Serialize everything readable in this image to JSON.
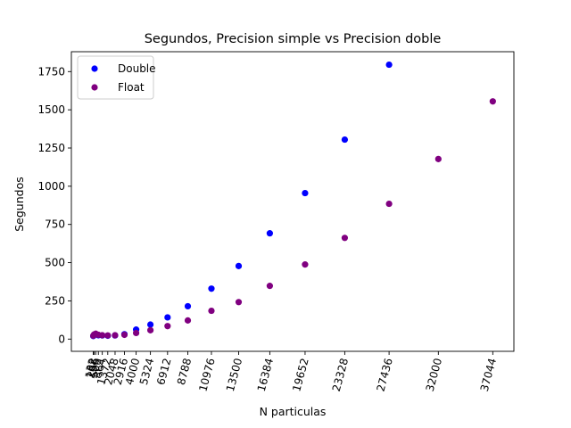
{
  "chart_data": {
    "type": "scatter",
    "title": "Segundos, Precision simple vs Precision doble",
    "xlabel": "N particulas",
    "ylabel": "Segundos",
    "xlim": [
      -2000,
      39000
    ],
    "ylim": [
      -80,
      1880
    ],
    "yticks": [
      0,
      250,
      500,
      750,
      1000,
      1250,
      1500,
      1750
    ],
    "xticks": [
      32,
      108,
      256,
      500,
      864,
      1372,
      2048,
      2916,
      4000,
      5324,
      6912,
      8788,
      10976,
      13500,
      16384,
      19652,
      23328,
      27436,
      32000,
      37044
    ],
    "xtick_labels": [
      "32",
      "108",
      "256",
      "500",
      "864",
      "1372",
      "2048",
      "2916",
      "4000",
      "5324",
      "6912",
      "8788",
      "10976",
      "13500",
      "16384",
      "19652",
      "23328",
      "27436",
      "32000",
      "37044"
    ],
    "xtick_rotation": 75,
    "grid": false,
    "legend_position": "top-left",
    "series": [
      {
        "name": "Double",
        "color": "#0000ff",
        "x": [
          32,
          108,
          256,
          500,
          864,
          1372,
          2048,
          2916,
          4000,
          5324,
          6912,
          8788,
          10976,
          13500,
          16384,
          19652,
          23328,
          27436
        ],
        "y": [
          20,
          28,
          32,
          25,
          24,
          22,
          24,
          32,
          62,
          95,
          142,
          215,
          330,
          478,
          692,
          955,
          1305,
          1795
        ]
      },
      {
        "name": "Float",
        "color": "#800080",
        "x": [
          32,
          108,
          256,
          500,
          864,
          1372,
          2048,
          2916,
          4000,
          5324,
          6912,
          8788,
          10976,
          13500,
          16384,
          19652,
          23328,
          27436,
          32000,
          37044
        ],
        "y": [
          22,
          30,
          35,
          28,
          25,
          24,
          25,
          28,
          40,
          58,
          85,
          122,
          185,
          242,
          348,
          488,
          662,
          885,
          1178,
          1555
        ]
      }
    ]
  }
}
